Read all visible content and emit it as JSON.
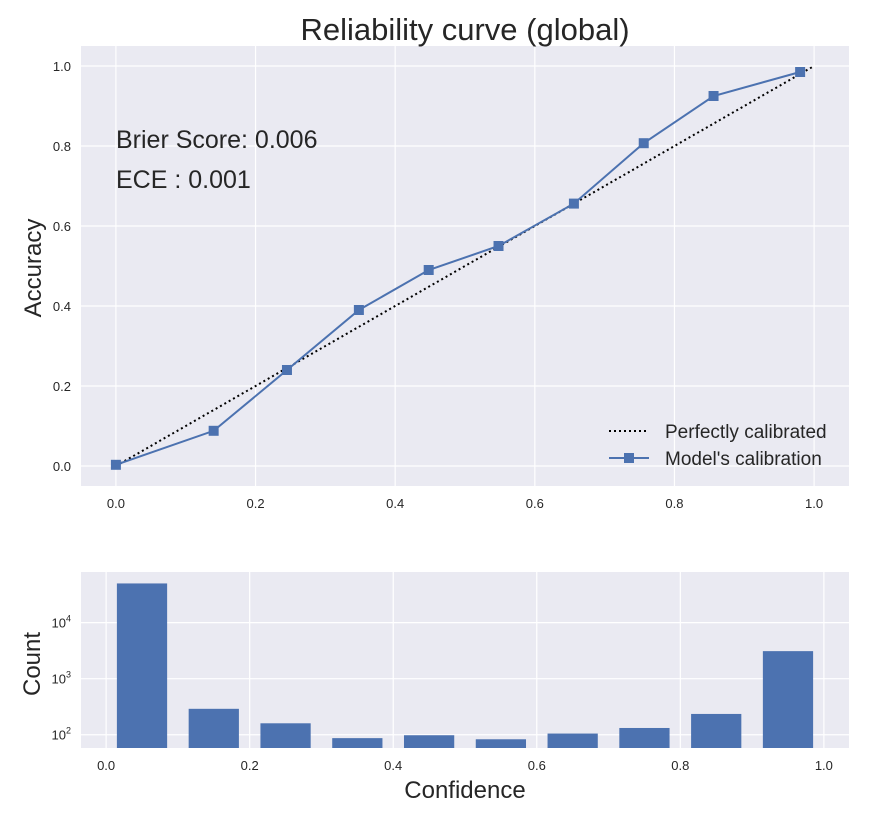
{
  "colors": {
    "panel_bg": "#EAEAF2",
    "grid": "#FFFFFF",
    "model_line": "#4C72B0",
    "perfect_line": "#000000",
    "bar": "#4C72B0",
    "text": "#262626"
  },
  "chart_data": [
    {
      "type": "line",
      "title": "Reliability curve (global)",
      "xlabel": "",
      "ylabel": "Accuracy",
      "xlim": [
        -0.05,
        1.05
      ],
      "ylim": [
        -0.05,
        1.05
      ],
      "x_ticks": [
        0.0,
        0.2,
        0.4,
        0.6,
        0.8,
        1.0
      ],
      "x_tick_labels": [
        "0.0",
        "0.2",
        "0.4",
        "0.6",
        "0.8",
        "1.0"
      ],
      "y_ticks": [
        0.0,
        0.2,
        0.4,
        0.6,
        0.8,
        1.0
      ],
      "y_tick_labels": [
        "0.0",
        "0.2",
        "0.4",
        "0.6",
        "0.8",
        "1.0"
      ],
      "grid": true,
      "legend_position": "bottom-right",
      "annotations": [
        "Brier Score: 0.006",
        "ECE : 0.001"
      ],
      "series": [
        {
          "name": "Perfectly calibrated",
          "style": "dotted",
          "x": [
            0.0,
            1.0
          ],
          "y": [
            0.0,
            1.0
          ]
        },
        {
          "name": "Model's calibration",
          "style": "line-square-markers",
          "x": [
            0.0,
            0.14,
            0.245,
            0.348,
            0.448,
            0.548,
            0.656,
            0.756,
            0.856,
            0.98
          ],
          "y": [
            0.003,
            0.088,
            0.24,
            0.39,
            0.49,
            0.55,
            0.656,
            0.807,
            0.925,
            0.985
          ]
        }
      ]
    },
    {
      "type": "bar",
      "title": "",
      "xlabel": "Confidence",
      "ylabel": "Count",
      "y_scale": "log",
      "xlim": [
        -0.035,
        1.035
      ],
      "ylim": [
        58,
        80000
      ],
      "x_ticks": [
        0.0,
        0.2,
        0.4,
        0.6,
        0.8,
        1.0
      ],
      "x_tick_labels": [
        "0.0",
        "0.2",
        "0.4",
        "0.6",
        "0.8",
        "1.0"
      ],
      "y_ticks": [
        100,
        1000,
        10000
      ],
      "y_tick_labels": [
        {
          "base": "10",
          "exp": "2"
        },
        {
          "base": "10",
          "exp": "3"
        },
        {
          "base": "10",
          "exp": "4"
        }
      ],
      "grid": true,
      "bar_width": 0.07,
      "x": [
        0.05,
        0.15,
        0.25,
        0.35,
        0.45,
        0.55,
        0.65,
        0.75,
        0.85,
        0.95
      ],
      "values": [
        50000,
        290,
        160,
        87,
        98,
        83,
        105,
        132,
        235,
        3100
      ]
    }
  ]
}
